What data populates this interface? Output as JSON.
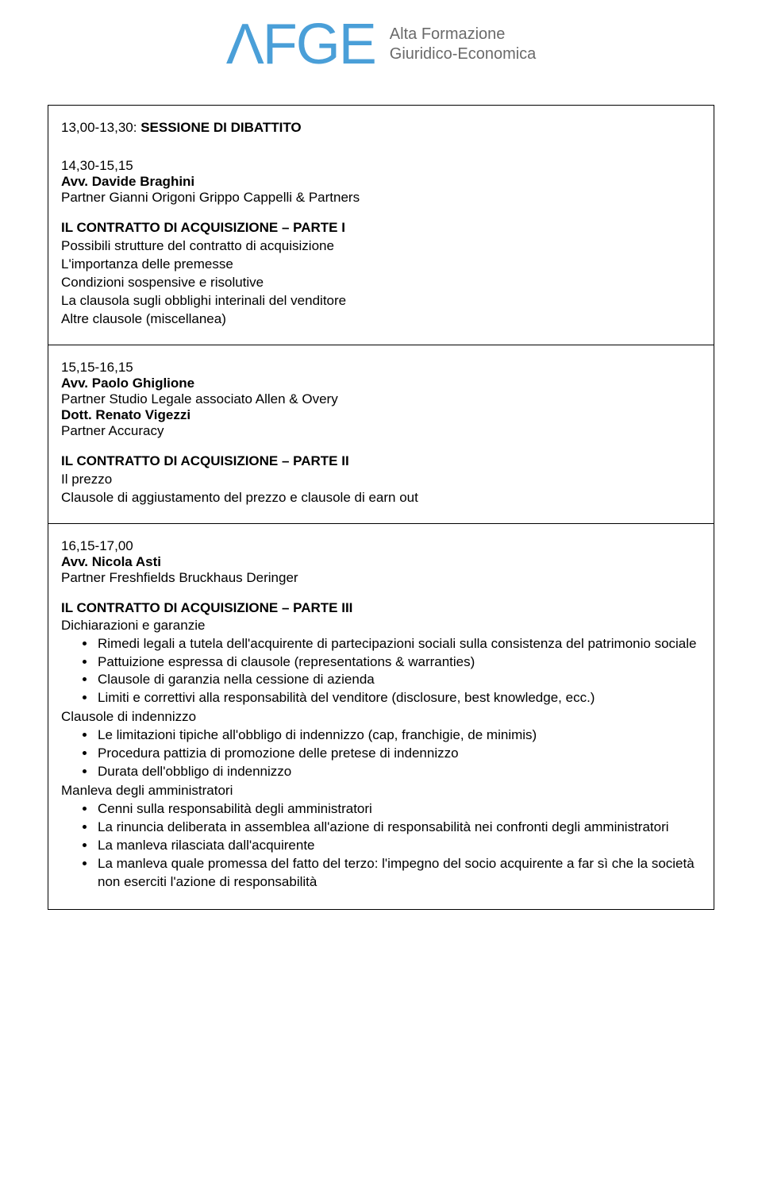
{
  "header": {
    "logo_main": "ΛFGE",
    "logo_sub_line1": "Alta Formazione",
    "logo_sub_line2": "Giuridico-Economica",
    "logo_color": "#4a9fd8",
    "sub_color": "#6a6a6a"
  },
  "sections": {
    "s1": {
      "time": "13,00-13,30:",
      "title": "SESSIONE DI DIBATTITO",
      "block2_time": "14,30-15,15",
      "block2_speaker_name": "Avv. Davide Braghini",
      "block2_speaker_role": "Partner Gianni Origoni Grippo Cappelli & Partners",
      "block2_topic": "IL CONTRATTO DI ACQUISIZIONE – PARTE I",
      "block2_lines": {
        "l0": "Possibili strutture del contratto di acquisizione",
        "l1": "L'importanza delle premesse",
        "l2": "Condizioni sospensive e risolutive",
        "l3": "La clausola sugli obblighi interinali del venditore",
        "l4": "Altre clausole (miscellanea)"
      }
    },
    "s2": {
      "time": "15,15-16,15",
      "speaker1_name": "Avv. Paolo Ghiglione",
      "speaker1_role": "Partner Studio Legale associato Allen & Overy",
      "speaker2_name": "Dott. Renato Vigezzi",
      "speaker2_role": "Partner Accuracy",
      "topic": "IL CONTRATTO DI ACQUISIZIONE – PARTE II",
      "lines": {
        "l0": "Il prezzo",
        "l1": "Clausole di aggiustamento del prezzo e clausole di earn out"
      }
    },
    "s3": {
      "time": "16,15-17,00",
      "speaker_name": "Avv. Nicola Asti",
      "speaker_role": "Partner Freshfields Bruckhaus Deringer",
      "topic": "IL CONTRATTO DI ACQUISIZIONE – PARTE III",
      "sub1": "Dichiarazioni e garanzie",
      "sub1_bullets": {
        "b0": "Rimedi legali a tutela dell'acquirente di partecipazioni sociali sulla consistenza del patrimonio sociale",
        "b1": "Pattuizione espressa di clausole (representations & warranties)",
        "b2": "Clausole di garanzia nella cessione di azienda",
        "b3": "Limiti e correttivi alla responsabilità del venditore (disclosure, best knowledge, ecc.)"
      },
      "sub2": "Clausole di indennizzo",
      "sub2_bullets": {
        "b0": "Le limitazioni tipiche all'obbligo di indennizzo (cap, franchigie, de minimis)",
        "b1": "Procedura pattizia di promozione delle pretese di indennizzo",
        "b2": "Durata dell'obbligo di indennizzo"
      },
      "sub3": "Manleva degli amministratori",
      "sub3_bullets": {
        "b0": "Cenni sulla responsabilità degli amministratori",
        "b1": "La rinuncia deliberata in assemblea all'azione di responsabilità nei confronti degli amministratori",
        "b2": "La manleva rilasciata dall'acquirente",
        "b3": "La manleva quale promessa del fatto del terzo: l'impegno del socio acquirente a far sì che la società non eserciti l'azione di responsabilità"
      }
    }
  }
}
